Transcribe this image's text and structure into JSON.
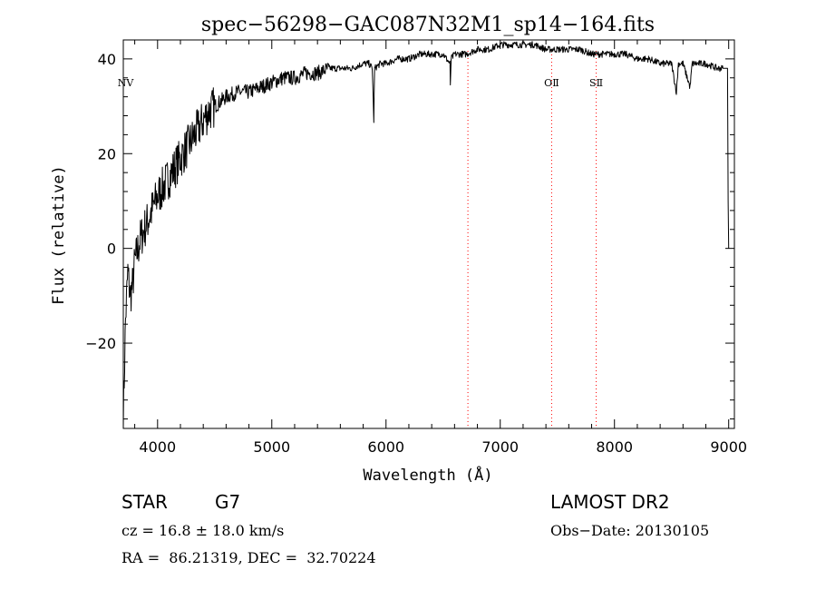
{
  "chart_data": {
    "type": "line",
    "title": "spec−56298−GAC087N32M1_sp14−164.fits",
    "xlabel": "Wavelength (Å)",
    "ylabel": "Flux (relative)",
    "xlim": [
      3700,
      9050
    ],
    "ylim": [
      -38,
      44
    ],
    "x_ticks": [
      4000,
      5000,
      6000,
      7000,
      8000,
      9000
    ],
    "x_tick_labels": [
      "4000",
      "5000",
      "6000",
      "7000",
      "8000",
      "9000"
    ],
    "y_ticks": [
      -20,
      0,
      20,
      40
    ],
    "y_tick_labels": [
      "−20",
      "0",
      "20",
      "40"
    ],
    "grid": false,
    "line_color": "#000000",
    "marker_color": "#ff0000",
    "series": [
      {
        "x": [
          3700,
          3720,
          3740,
          3760,
          3780,
          3800,
          3850,
          3900,
          3950,
          4000,
          4050,
          4100,
          4150,
          4200,
          4250,
          4300,
          4350,
          4400,
          4450,
          4500,
          4550,
          4600,
          4700,
          4800,
          4900,
          5000,
          5100,
          5200,
          5300,
          5400,
          5500,
          5600,
          5700,
          5800,
          5850,
          5880,
          5893,
          5900,
          5950,
          6000,
          6100,
          6200,
          6300,
          6400,
          6500,
          6560,
          6563,
          6570,
          6600,
          6700,
          6800,
          6900,
          7000,
          7100,
          7200,
          7300,
          7400,
          7500,
          7600,
          7700,
          7800,
          7900,
          8000,
          8100,
          8200,
          8300,
          8400,
          8450,
          8500,
          8542,
          8560,
          8600,
          8662,
          8680,
          8700,
          8800,
          8900,
          8950,
          8980,
          8990,
          8995,
          9000
        ],
        "values": [
          -36,
          -15,
          -5,
          -10,
          -8,
          -3,
          2,
          5,
          8,
          11,
          13,
          15,
          17,
          19,
          21,
          23,
          25,
          27,
          29,
          30,
          31,
          32,
          33,
          33,
          34,
          35,
          36,
          36,
          37,
          37,
          38,
          38,
          38,
          39,
          39,
          38,
          27,
          38,
          39,
          39,
          40,
          40,
          41,
          41,
          41,
          39,
          34,
          40,
          41,
          41,
          42,
          42,
          43,
          43,
          43,
          43,
          42,
          42,
          42,
          42,
          41,
          41,
          41,
          41,
          40,
          40,
          39,
          39,
          39,
          33,
          39,
          39,
          34,
          39,
          39,
          39,
          38,
          38,
          38,
          38,
          10,
          0
        ]
      }
    ],
    "line_markers": [
      {
        "label": "NⅤ",
        "x": 3720,
        "dotted": false
      },
      {
        "label": "",
        "x": 6717,
        "dotted": true
      },
      {
        "label": "OⅡ",
        "x": 7450,
        "dotted": true
      },
      {
        "label": "SⅡ",
        "x": 7840,
        "dotted": true
      }
    ],
    "info": {
      "object_class": "STAR",
      "subclass": "G7",
      "survey": "LAMOST DR2",
      "cz": "cz = 16.8 ± 18.0 km/s",
      "obs_date": "Obs−Date: 20130105",
      "coords": "RA =  86.21319, DEC =  32.70224"
    }
  }
}
